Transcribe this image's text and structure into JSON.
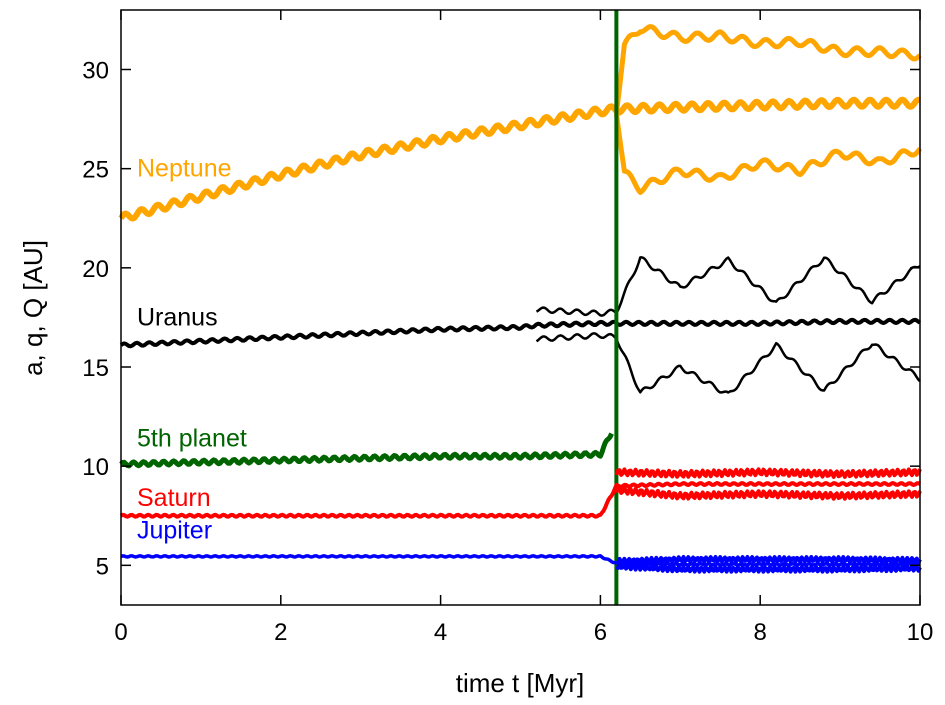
{
  "chart_data": {
    "type": "line",
    "xlabel": "time t [Myr]",
    "ylabel": "a, q, Q [AU]",
    "xlim": [
      0,
      10
    ],
    "ylim": [
      3,
      33
    ],
    "xticks": [
      "0",
      "2",
      "4",
      "6",
      "8",
      "10"
    ],
    "yticks": [
      "5",
      "10",
      "15",
      "20",
      "25",
      "30"
    ],
    "grid": false,
    "series": [
      {
        "name": "Neptune",
        "color": "#ffa500",
        "a": {
          "x": [
            0,
            1,
            2,
            3,
            4,
            5,
            6,
            6.2,
            7,
            8,
            9,
            10
          ],
          "y": [
            22.5,
            23.6,
            24.7,
            25.7,
            26.5,
            27.2,
            27.9,
            28.0,
            28.1,
            28.2,
            28.3,
            28.3
          ]
        },
        "q": {
          "x": [
            6.2,
            6.3,
            6.5,
            7,
            7.5,
            8,
            8.5,
            9,
            9.5,
            10
          ],
          "y": [
            28.0,
            24.8,
            24.0,
            24.9,
            24.5,
            25.3,
            24.9,
            25.8,
            25.3,
            26.0
          ]
        },
        "Q": {
          "x": [
            6.2,
            6.3,
            6.5,
            7,
            7.5,
            8,
            8.5,
            9,
            9.5,
            10
          ],
          "y": [
            28.0,
            31.2,
            32.1,
            31.6,
            31.7,
            31.3,
            31.4,
            30.9,
            30.9,
            30.7
          ]
        }
      },
      {
        "name": "Uranus",
        "color": "#000000",
        "a": {
          "x": [
            0,
            1,
            2,
            3,
            4,
            5,
            5.2,
            6,
            6.2,
            7,
            8,
            9,
            10
          ],
          "y": [
            16.1,
            16.3,
            16.5,
            16.7,
            16.9,
            17.0,
            17.1,
            17.2,
            17.2,
            17.2,
            17.2,
            17.3,
            17.3
          ]
        },
        "q": {
          "x": [
            5.2,
            6.0,
            6.2,
            6.5,
            7.0,
            7.6,
            8.2,
            8.8,
            9.4,
            10.0
          ],
          "y": [
            16.4,
            16.6,
            16.5,
            13.7,
            15.0,
            13.6,
            16.1,
            13.8,
            16.2,
            14.4
          ]
        },
        "Q": {
          "x": [
            5.2,
            6.0,
            6.2,
            6.5,
            7.0,
            7.6,
            8.2,
            8.8,
            9.4,
            10.0
          ],
          "y": [
            17.9,
            17.7,
            17.8,
            20.5,
            19.0,
            20.4,
            18.2,
            20.5,
            18.3,
            20.2
          ]
        }
      },
      {
        "name": "5th planet",
        "color": "#006400",
        "a": {
          "x": [
            0,
            1,
            2,
            3,
            4,
            5,
            6.0,
            6.15
          ],
          "y": [
            10.1,
            10.2,
            10.3,
            10.4,
            10.5,
            10.5,
            10.6,
            11.8
          ]
        },
        "ejection_x": 6.2
      },
      {
        "name": "Saturn",
        "color": "#ff0000",
        "a": {
          "x": [
            0,
            6.0,
            6.2,
            7,
            8,
            9,
            10
          ],
          "y": [
            7.5,
            7.5,
            9.0,
            9.1,
            9.1,
            9.1,
            9.1
          ]
        },
        "q": {
          "x": [
            6.2,
            7,
            8,
            9,
            10
          ],
          "y": [
            8.8,
            8.5,
            8.6,
            8.5,
            8.6
          ]
        },
        "Q": {
          "x": [
            6.2,
            7,
            8,
            9,
            10
          ],
          "y": [
            9.7,
            9.6,
            9.7,
            9.6,
            9.7
          ]
        }
      },
      {
        "name": "Jupiter",
        "color": "#0000ff",
        "a": {
          "x": [
            0,
            3,
            6.0,
            6.2,
            7,
            8,
            9,
            10
          ],
          "y": [
            5.45,
            5.45,
            5.45,
            5.1,
            5.05,
            5.05,
            5.05,
            5.05
          ]
        },
        "q": {
          "x": [
            6.2,
            7,
            8,
            9,
            10
          ],
          "y": [
            4.95,
            4.8,
            4.8,
            4.8,
            4.85
          ]
        },
        "Q": {
          "x": [
            6.2,
            7,
            8,
            9,
            10
          ],
          "y": [
            5.2,
            5.3,
            5.3,
            5.3,
            5.25
          ]
        }
      }
    ]
  }
}
